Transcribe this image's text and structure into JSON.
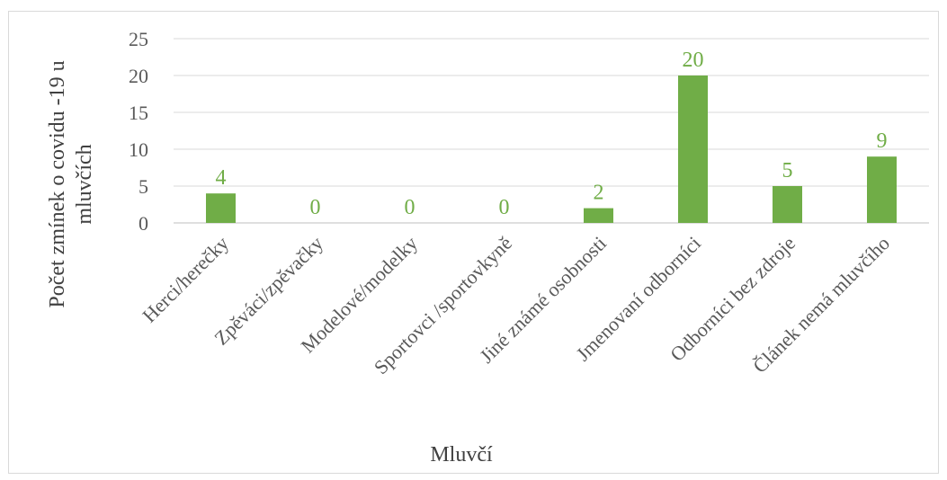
{
  "chart_data": {
    "type": "bar",
    "categories": [
      "Herci/herečky",
      "Zpěváci/zpěvačky",
      "Modelové/modelky",
      "Sportovci /sportovkyně",
      "Jiné známé osobnosti",
      "Jmenovaní odborníci",
      "Odborníci bez zdroje",
      "Článek nemá mluvčího"
    ],
    "values": [
      4,
      0,
      0,
      0,
      2,
      20,
      5,
      9
    ],
    "title": "",
    "xlabel": "Mluvčí",
    "ylabel_lines": [
      "Počet zmínek o covidu -19 u",
      "mluvčích"
    ],
    "ylim": [
      0,
      25
    ],
    "yticks": [
      0,
      5,
      10,
      15,
      20,
      25
    ],
    "grid": true,
    "bar_color": "#70ad47",
    "grid_color": "#d9d9d9",
    "data_labels": true
  }
}
